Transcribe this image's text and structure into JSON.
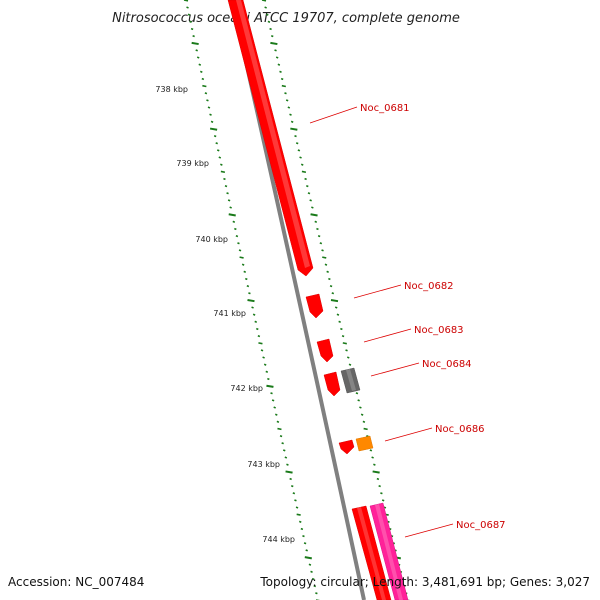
{
  "title": "Nitrosococcus oceani ATCC 19707, complete genome",
  "footer": {
    "accession": "Accession: NC_007484",
    "summary": "Topology: circular; Length: 3,481,691 bp; Genes: 3,027"
  },
  "ticks": [
    {
      "label": "738 kbp"
    },
    {
      "label": "739 kbp"
    },
    {
      "label": "740 kbp"
    },
    {
      "label": "741 kbp"
    },
    {
      "label": "742 kbp"
    },
    {
      "label": "743 kbp"
    },
    {
      "label": "744 kbp"
    }
  ],
  "genes": [
    {
      "name": "Noc_0681",
      "color": "#ff0000"
    },
    {
      "name": "Noc_0682",
      "color": "#ff0000"
    },
    {
      "name": "Noc_0683",
      "color": "#ff0000"
    },
    {
      "name": "Noc_0684",
      "color": "#666666"
    },
    {
      "name": "Noc_0686",
      "color": "#ff8800"
    },
    {
      "name": "Noc_0687",
      "color": "#ff2299"
    }
  ],
  "colors": {
    "backbone": "#808080",
    "tick": "#1a7a1a",
    "gene_label": "#cc0000",
    "label_line": "#dd0000"
  }
}
